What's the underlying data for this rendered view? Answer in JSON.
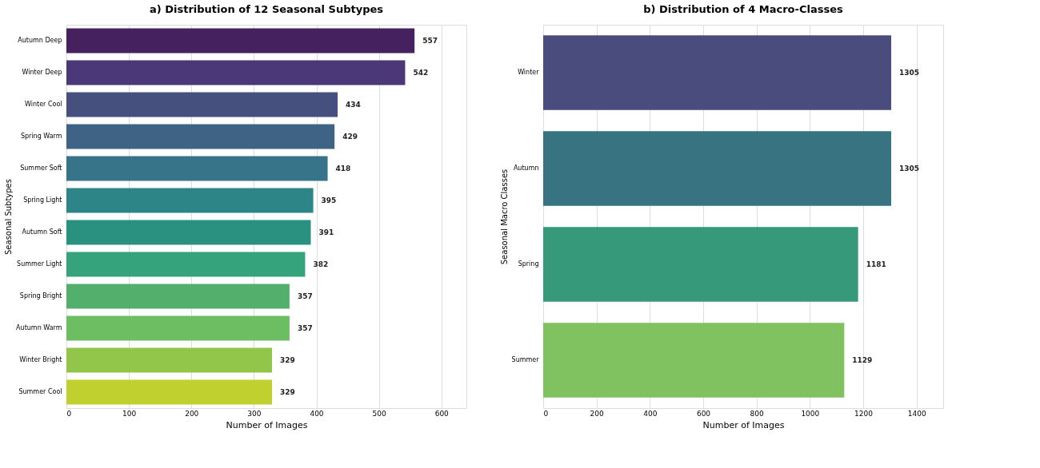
{
  "chart_data": [
    {
      "type": "bar",
      "orientation": "horizontal",
      "title": "a) Distribution of 12 Seasonal Subtypes",
      "xlabel": "Number of Images",
      "ylabel": "Seasonal Subtypes",
      "categories": [
        "Autumn Deep",
        "Winter Deep",
        "Winter Cool",
        "Spring Warm",
        "Summer Soft",
        "Spring Light",
        "Autumn Soft",
        "Summer Light",
        "Spring Bright",
        "Autumn Warm",
        "Winter Bright",
        "Summer Cool"
      ],
      "values": [
        557,
        542,
        434,
        429,
        418,
        395,
        391,
        382,
        357,
        357,
        329,
        329
      ],
      "colors": [
        "#46215f",
        "#4a3878",
        "#46507f",
        "#3e6384",
        "#37748a",
        "#2e8588",
        "#2a9181",
        "#35a37c",
        "#52b06c",
        "#6dbd63",
        "#92c64a",
        "#bfd02f"
      ],
      "xlim": [
        0,
        640
      ],
      "xticks": [
        0,
        100,
        200,
        300,
        400,
        500,
        600
      ],
      "grid": "x",
      "data_labels": true
    },
    {
      "type": "bar",
      "orientation": "horizontal",
      "title": "b) Distribution of 4 Macro-Classes",
      "xlabel": "Number of Images",
      "ylabel": "Seasonal Macro Classes",
      "categories": [
        "Winter",
        "Autumn",
        "Spring",
        "Summer"
      ],
      "values": [
        1305,
        1305,
        1181,
        1129
      ],
      "colors": [
        "#4b4c7e",
        "#377380",
        "#35997a",
        "#7fc25f"
      ],
      "xlim": [
        0,
        1500
      ],
      "xticks": [
        0,
        200,
        400,
        600,
        800,
        1000,
        1200,
        1400
      ],
      "grid": "x",
      "data_labels": true
    }
  ]
}
